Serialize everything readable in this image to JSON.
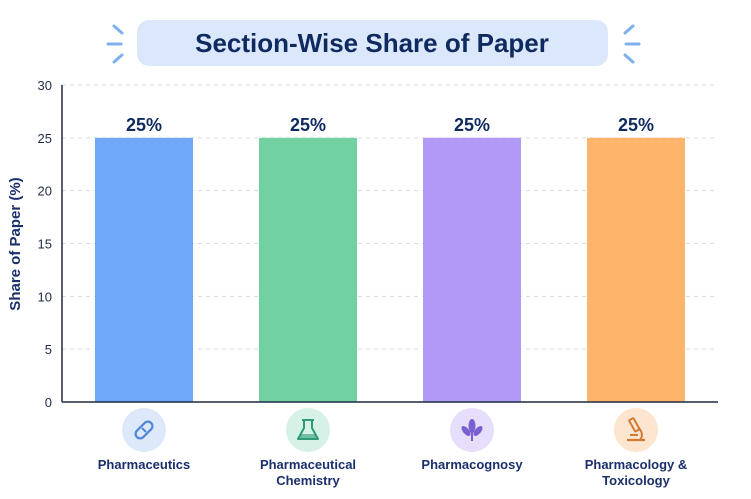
{
  "colors": {
    "title_pill": "#dbe8fb",
    "title_text": "#0f2a5f",
    "accent_dashes": "#7fb0ec",
    "axis": "#1f2a44",
    "grid": "#d4dae6",
    "label_text": "#1a2f6b"
  },
  "chart_data": {
    "type": "bar",
    "title": "Section-Wise Share of Paper",
    "ylabel": "Share of Paper (%)",
    "xlabel": "",
    "ylim": [
      0,
      30
    ],
    "yticks": [
      "0",
      "5",
      "10",
      "15",
      "20",
      "25",
      "30"
    ],
    "grid": true,
    "categories": [
      {
        "label": [
          "Pharmaceutics"
        ],
        "icon": "capsule-icon",
        "color": "#6ea8f7",
        "icon_bg": "#dde9fb",
        "icon_fg": "#4f86d6"
      },
      {
        "label": [
          "Pharmaceutical",
          "Chemistry"
        ],
        "icon": "flask-icon",
        "color": "#72d1a3",
        "icon_bg": "#d6f2e6",
        "icon_fg": "#2e9a78"
      },
      {
        "label": [
          "Pharmacognosy"
        ],
        "icon": "leaf-icon",
        "color": "#b19af5",
        "icon_bg": "#e6defb",
        "icon_fg": "#7a5fd0"
      },
      {
        "label": [
          "Pharmacology &",
          "Toxicology"
        ],
        "icon": "microscope-icon",
        "color": "#fdb46b",
        "icon_bg": "#fde5cf",
        "icon_fg": "#d27a32"
      }
    ],
    "values": [
      25,
      25,
      25,
      25
    ],
    "data_labels": [
      "25%",
      "25%",
      "25%",
      "25%"
    ]
  }
}
